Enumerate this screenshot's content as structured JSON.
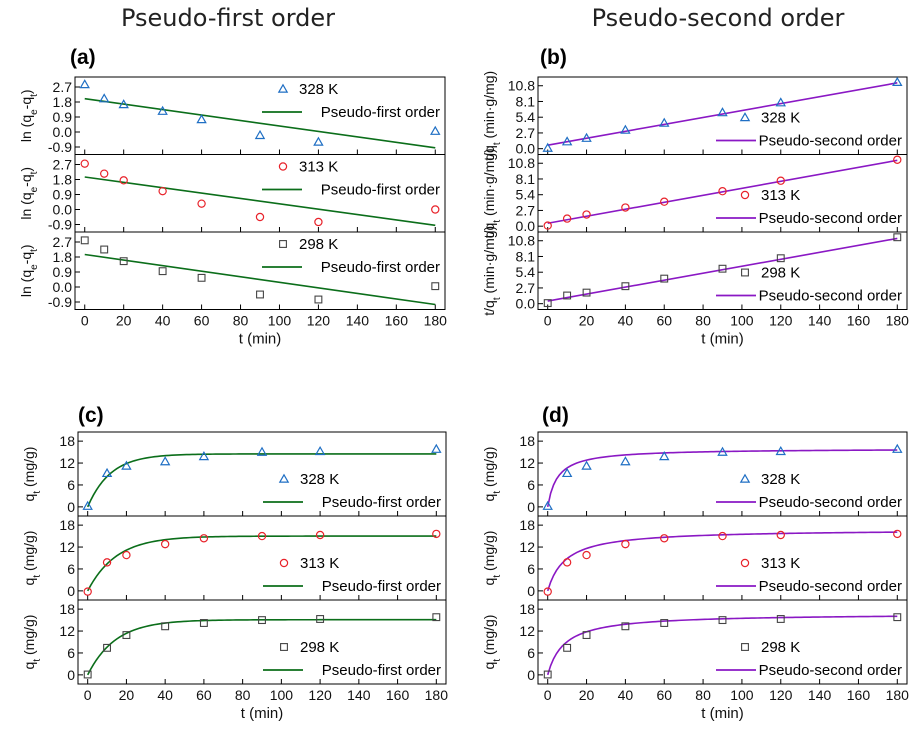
{
  "column_titles": {
    "left": "Pseudo-first order",
    "right": "Pseudo-second order"
  },
  "chart_data": [
    {
      "panel": "(a)",
      "type": "scatter",
      "xlabel": "t (min)",
      "xlim": [
        -5,
        185
      ],
      "xticks": [
        0,
        20,
        40,
        60,
        80,
        100,
        120,
        140,
        160,
        180
      ],
      "ylabel": "ln (q_e-q_t)",
      "ylim": [
        -1.35,
        3.3
      ],
      "yticks": [
        "2.7",
        "1.8",
        "0.9",
        "0.0",
        "-0.9"
      ],
      "legend_position": "top-right",
      "model_color": "#0b6e1a",
      "subplots": [
        {
          "temperature": "328 K",
          "marker": "triangle",
          "color": "#1f6fc4",
          "x": [
            0,
            10,
            20,
            40,
            60,
            90,
            120,
            180
          ],
          "y": [
            2.85,
            2.0,
            1.65,
            1.25,
            0.75,
            -0.2,
            -0.6,
            0.05
          ],
          "fit_label": "Pseudo-first order",
          "fit_x": [
            0,
            180
          ],
          "fit_y": [
            2.0,
            -0.95
          ]
        },
        {
          "temperature": "313 K",
          "marker": "circle",
          "color": "#e8222a",
          "x": [
            0,
            10,
            20,
            40,
            60,
            90,
            120,
            180
          ],
          "y": [
            2.75,
            2.15,
            1.75,
            1.1,
            0.35,
            -0.45,
            -0.75,
            0.0
          ],
          "fit_label": "Pseudo-first order",
          "fit_x": [
            0,
            180
          ],
          "fit_y": [
            1.95,
            -0.95
          ]
        },
        {
          "temperature": "298 K",
          "marker": "square",
          "color": "#444444",
          "x": [
            0,
            10,
            20,
            40,
            60,
            90,
            120,
            180
          ],
          "y": [
            2.8,
            2.25,
            1.55,
            0.95,
            0.55,
            -0.45,
            -0.75,
            0.05
          ],
          "fit_label": "Pseudo-first order",
          "fit_x": [
            0,
            180
          ],
          "fit_y": [
            1.95,
            -1.05
          ]
        }
      ]
    },
    {
      "panel": "(b)",
      "type": "scatter",
      "xlabel": "t (min)",
      "xlim": [
        -5,
        185
      ],
      "xticks": [
        0,
        20,
        40,
        60,
        80,
        100,
        120,
        140,
        160,
        180
      ],
      "ylabel": "t/q_t (min·g/mg)",
      "ylim": [
        -1.0,
        12.3
      ],
      "yticks": [
        "10.8",
        "8.1",
        "5.4",
        "2.7",
        "0.0"
      ],
      "legend_position": "bottom-right",
      "model_color": "#8a18c4",
      "subplots": [
        {
          "temperature": "328 K",
          "marker": "triangle",
          "color": "#1f6fc4",
          "x": [
            0,
            10,
            20,
            40,
            60,
            90,
            120,
            180
          ],
          "y": [
            0.1,
            1.2,
            1.8,
            3.2,
            4.4,
            6.2,
            7.9,
            11.4
          ],
          "fit_label": "Pseudo-second order",
          "fit_x": [
            0,
            180
          ],
          "fit_y": [
            0.6,
            11.3
          ]
        },
        {
          "temperature": "313 K",
          "marker": "circle",
          "color": "#e8222a",
          "x": [
            0,
            10,
            20,
            40,
            60,
            90,
            120,
            180
          ],
          "y": [
            0.1,
            1.3,
            2.0,
            3.2,
            4.2,
            6.0,
            7.8,
            11.4
          ],
          "fit_label": "Pseudo-second order",
          "fit_x": [
            0,
            180
          ],
          "fit_y": [
            0.5,
            11.3
          ]
        },
        {
          "temperature": "298 K",
          "marker": "square",
          "color": "#444444",
          "x": [
            0,
            10,
            20,
            40,
            60,
            90,
            120,
            180
          ],
          "y": [
            0.1,
            1.4,
            1.9,
            3.0,
            4.3,
            6.0,
            7.8,
            11.4
          ],
          "fit_label": "Pseudo-second order",
          "fit_x": [
            0,
            180
          ],
          "fit_y": [
            0.45,
            11.2
          ]
        }
      ]
    },
    {
      "panel": "(c)",
      "type": "scatter",
      "xlabel": "t (min)",
      "xlim": [
        -5,
        185
      ],
      "xticks": [
        0,
        20,
        40,
        60,
        80,
        100,
        120,
        140,
        160,
        180
      ],
      "ylabel": "q_t (mg/g)",
      "ylim": [
        -2.5,
        20.5
      ],
      "yticks": [
        "18",
        "12",
        "6",
        "0"
      ],
      "legend_position": "bottom-right",
      "model_color": "#0b6e1a",
      "subplots": [
        {
          "temperature": "328 K",
          "marker": "triangle",
          "color": "#1f6fc4",
          "x": [
            0,
            10,
            20,
            40,
            60,
            90,
            120,
            180
          ],
          "y": [
            0.2,
            9.2,
            11.2,
            12.4,
            13.8,
            15.0,
            15.2,
            15.8
          ],
          "fit_label": "Pseudo-first order",
          "model": "pfo",
          "qe": 14.5,
          "k": 0.085
        },
        {
          "temperature": "313 K",
          "marker": "circle",
          "color": "#e8222a",
          "x": [
            0,
            10,
            20,
            40,
            60,
            90,
            120,
            180
          ],
          "y": [
            -0.2,
            7.8,
            9.8,
            12.8,
            14.4,
            15.0,
            15.3,
            15.6
          ],
          "fit_label": "Pseudo-first order",
          "model": "pfo",
          "qe": 15.0,
          "k": 0.068
        },
        {
          "temperature": "298 K",
          "marker": "square",
          "color": "#444444",
          "x": [
            0,
            10,
            20,
            40,
            60,
            90,
            120,
            180
          ],
          "y": [
            0.1,
            7.4,
            10.9,
            13.3,
            14.2,
            15.0,
            15.3,
            15.8
          ],
          "fit_label": "Pseudo-first order",
          "model": "pfo",
          "qe": 15.1,
          "k": 0.07
        }
      ]
    },
    {
      "panel": "(d)",
      "type": "scatter",
      "xlabel": "t (min)",
      "xlim": [
        -5,
        185
      ],
      "xticks": [
        0,
        20,
        40,
        60,
        80,
        100,
        120,
        140,
        160,
        180
      ],
      "ylabel": "q_t (mg/g)",
      "ylim": [
        -2.5,
        20.5
      ],
      "yticks": [
        "18",
        "12",
        "6",
        "0"
      ],
      "legend_position": "bottom-right",
      "model_color": "#8a18c4",
      "subplots": [
        {
          "temperature": "328 K",
          "marker": "triangle",
          "color": "#1f6fc4",
          "x": [
            0,
            10,
            20,
            40,
            60,
            90,
            120,
            180
          ],
          "y": [
            0.2,
            9.2,
            11.2,
            12.4,
            13.8,
            15.0,
            15.2,
            15.8
          ],
          "fit_label": "Pseudo-second order",
          "model": "pso",
          "qe": 16.0,
          "k": 0.0125
        },
        {
          "temperature": "313 K",
          "marker": "circle",
          "color": "#e8222a",
          "x": [
            0,
            10,
            20,
            40,
            60,
            90,
            120,
            180
          ],
          "y": [
            -0.2,
            7.8,
            9.8,
            12.8,
            14.4,
            15.0,
            15.3,
            15.6
          ],
          "fit_label": "Pseudo-second order",
          "model": "pso",
          "qe": 16.9,
          "k": 0.0065
        },
        {
          "temperature": "298 K",
          "marker": "square",
          "color": "#444444",
          "x": [
            0,
            10,
            20,
            40,
            60,
            90,
            120,
            180
          ],
          "y": [
            0.1,
            7.4,
            10.9,
            13.3,
            14.2,
            15.0,
            15.3,
            15.8
          ],
          "fit_label": "Pseudo-second order",
          "model": "pso",
          "qe": 16.8,
          "k": 0.007
        }
      ]
    }
  ]
}
